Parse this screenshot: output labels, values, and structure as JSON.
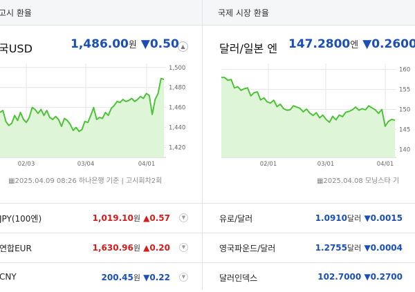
{
  "left": {
    "tab": "고시 환율",
    "headline": {
      "name": "국USD",
      "value": "1,486.00",
      "unit": "원",
      "change": "▼0.50",
      "direction": "down"
    },
    "chart_data": {
      "type": "line",
      "title": "",
      "xlabel": "",
      "ylabel": "",
      "x_ticks": [
        "02/03",
        "03/04",
        "04/01"
      ],
      "y_ticks": [
        "1,500",
        "1,480",
        "1,460",
        "1,440",
        "1,420"
      ],
      "ylim": [
        1410,
        1504
      ],
      "grid": true,
      "series": [
        {
          "values": [
            1455,
            1457,
            1446,
            1442,
            1444,
            1452,
            1447,
            1455,
            1448,
            1445,
            1450,
            1460,
            1458,
            1454,
            1458,
            1452,
            1457,
            1450,
            1448,
            1451,
            1448,
            1441,
            1449,
            1447,
            1443,
            1437,
            1440,
            1436,
            1438,
            1446,
            1445,
            1452,
            1460,
            1448,
            1450,
            1449,
            1455,
            1452,
            1459,
            1462,
            1466,
            1465,
            1468,
            1466,
            1467,
            1469,
            1466,
            1468,
            1471,
            1469,
            1474,
            1472,
            1453,
            1468,
            1474,
            1489,
            1488
          ]
        }
      ]
    },
    "meta": "2025.04.09 08:26 하나은행 기준 | 고시회차2회",
    "rows": [
      {
        "name": "JPY(100엔)",
        "value": "1,019.10",
        "unit": "원",
        "change": "▲0.57",
        "direction": "up"
      },
      {
        "name": "연합EUR",
        "value": "1,630.96",
        "unit": "원",
        "change": "▲0.20",
        "direction": "up"
      },
      {
        "name": "CNY",
        "value": "200.45",
        "unit": "원",
        "change": "▼0.22",
        "direction": "down"
      }
    ]
  },
  "right": {
    "tab": "국제 시장 환율",
    "headline": {
      "name": "달러/일본 엔",
      "value": "147.2800",
      "unit": "엔",
      "change": "▼0.2600",
      "direction": "down"
    },
    "chart_data": {
      "type": "line",
      "title": "",
      "xlabel": "",
      "ylabel": "",
      "x_ticks": [
        "02/01",
        "03/01",
        "04/01"
      ],
      "y_ticks": [
        "160",
        "155",
        "150",
        "145",
        "140"
      ],
      "ylim": [
        138,
        161.5
      ],
      "grid": true,
      "series": [
        {
          "values": [
            158.0,
            158.0,
            157.3,
            157.5,
            155.4,
            155.7,
            154.8,
            155.2,
            155.4,
            153.4,
            154.2,
            154.4,
            152.4,
            152.9,
            151.9,
            151.6,
            152.3,
            150.7,
            151.3,
            150.2,
            149.8,
            149.9,
            150.9,
            150.6,
            150.3,
            149.4,
            150.1,
            149.1,
            148.5,
            149.2,
            147.9,
            148.6,
            147.5,
            146.8,
            148.3,
            147.4,
            148.6,
            148.2,
            149.3,
            149.5,
            149.9,
            150.6,
            149.8,
            150.2,
            149.9,
            150.9,
            150.4,
            149.9,
            149.0,
            150.0,
            145.8,
            147.0,
            147.5,
            147.3
          ]
        }
      ]
    },
    "meta": "2025.04.08 모닝스타 기",
    "rows": [
      {
        "name": "유로/달러",
        "value": "1.0910",
        "unit": "달러",
        "change": "▼0.0015",
        "direction": "down"
      },
      {
        "name": "영국파운드/달러",
        "value": "1.2755",
        "unit": "달러",
        "change": "▼0.0004",
        "direction": "down"
      },
      {
        "name": "달러인덱스",
        "value": "102.7000",
        "unit": "",
        "change": "▼0.2700",
        "direction": "down"
      }
    ]
  },
  "icons": {
    "collapse": "chevron-up-icon",
    "row_toggle": "chevron-down-icon",
    "calendar": "calendar-icon"
  },
  "colors": {
    "up": "#d71a1a",
    "down": "#1a4fb8",
    "line": "#4cc236",
    "area": "#dff5d8",
    "grid": "#e6e6e6"
  }
}
